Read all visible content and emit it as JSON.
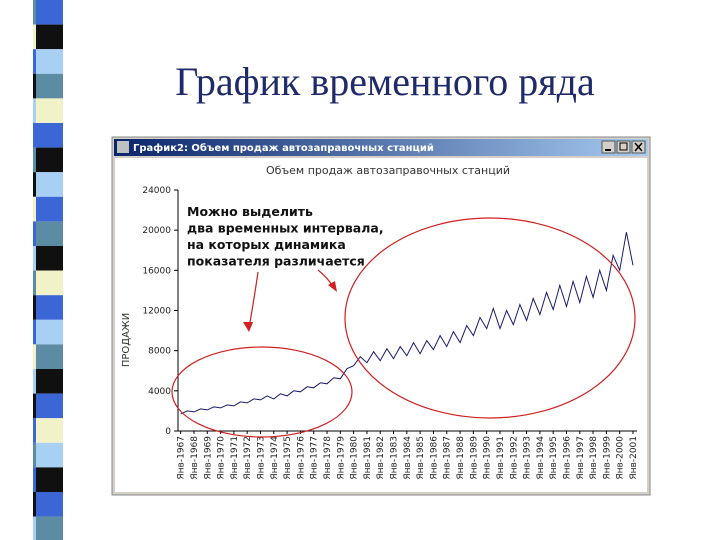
{
  "slide_title": "График временного ряда",
  "window_title": "График2: Объем продаж автозаправочных станций",
  "chart_data": {
    "type": "line",
    "title": "Объем продаж автозаправочных станций",
    "y_label": "ПРОДАЖИ",
    "annotation": [
      "Можно выделить",
      "два временных интервала,",
      "на которых динамика",
      "показателя различается"
    ],
    "color": "#1a1a6e",
    "x": [
      1967,
      1967.5,
      1968,
      1968.5,
      1969,
      1969.5,
      1970,
      1970.5,
      1971,
      1971.5,
      1972,
      1972.5,
      1973,
      1973.5,
      1974,
      1974.5,
      1975,
      1975.5,
      1976,
      1976.5,
      1977,
      1977.5,
      1978,
      1978.5,
      1979,
      1979.5,
      1980,
      1980.5,
      1981,
      1981.5,
      1982,
      1982.5,
      1983,
      1983.5,
      1984,
      1984.5,
      1985,
      1985.5,
      1986,
      1986.5,
      1987,
      1987.5,
      1988,
      1988.5,
      1989,
      1989.5,
      1990,
      1990.5,
      1991,
      1991.5,
      1992,
      1992.5,
      1993,
      1993.5,
      1994,
      1994.5,
      1995,
      1995.5,
      1996,
      1996.5,
      1997,
      1997.5,
      1998,
      1998.5,
      1999,
      1999.5,
      2000,
      2000.5,
      2001
    ],
    "values": [
      1700,
      2000,
      1900,
      2200,
      2100,
      2400,
      2300,
      2600,
      2500,
      2900,
      2800,
      3200,
      3100,
      3500,
      3200,
      3700,
      3500,
      4000,
      3900,
      4400,
      4300,
      4800,
      4700,
      5300,
      5200,
      6200,
      6500,
      7400,
      6800,
      7900,
      7000,
      8200,
      7200,
      8400,
      7500,
      8800,
      7700,
      9000,
      8100,
      9500,
      8400,
      9900,
      8800,
      10500,
      9500,
      11300,
      10200,
      12200,
      10200,
      12000,
      10600,
      12600,
      11000,
      13200,
      11600,
      13800,
      12100,
      14500,
      12400,
      14900,
      12800,
      15400,
      13300,
      16000,
      14000,
      17500,
      16000,
      19800,
      16500
    ],
    "xlim": [
      1966.8,
      2001.3
    ],
    "ylim": [
      0,
      24000
    ],
    "yticks": [
      0,
      4000,
      8000,
      12000,
      16000,
      20000,
      24000
    ],
    "xticks": [
      {
        "value": 1967,
        "label": "Янв-1967"
      },
      {
        "value": 1968,
        "label": "Янв-1968"
      },
      {
        "value": 1969,
        "label": "Янв-1969"
      },
      {
        "value": 1970,
        "label": "Янв-1970"
      },
      {
        "value": 1971,
        "label": "Янв-1971"
      },
      {
        "value": 1972,
        "label": "Янв-1972"
      },
      {
        "value": 1973,
        "label": "Янв-1973"
      },
      {
        "value": 1974,
        "label": "Янв-1974"
      },
      {
        "value": 1975,
        "label": "Янв-1975"
      },
      {
        "value": 1976,
        "label": "Янв-1976"
      },
      {
        "value": 1977,
        "label": "Янв-1977"
      },
      {
        "value": 1978,
        "label": "Янв-1978"
      },
      {
        "value": 1979,
        "label": "Янв-1979"
      },
      {
        "value": 1980,
        "label": "Янв-1980"
      },
      {
        "value": 1981,
        "label": "Янв-1981"
      },
      {
        "value": 1982,
        "label": "Янв-1982"
      },
      {
        "value": 1983,
        "label": "Янв-1983"
      },
      {
        "value": 1984,
        "label": "Янв-1984"
      },
      {
        "value": 1985,
        "label": "Янв-1985"
      },
      {
        "value": 1986,
        "label": "Янв-1986"
      },
      {
        "value": 1987,
        "label": "Янв-1987"
      },
      {
        "value": 1988,
        "label": "Янв-1988"
      },
      {
        "value": 1989,
        "label": "Янв-1989"
      },
      {
        "value": 1990,
        "label": "Янв-1990"
      },
      {
        "value": 1991,
        "label": "Янв-1991"
      },
      {
        "value": 1992,
        "label": "Янв-1992"
      },
      {
        "value": 1993,
        "label": "Янв-1993"
      },
      {
        "value": 1994,
        "label": "Янв-1994"
      },
      {
        "value": 1995,
        "label": "Янв-1995"
      },
      {
        "value": 1996,
        "label": "Янв-1996"
      },
      {
        "value": 1997,
        "label": "Янв-1997"
      },
      {
        "value": 1998,
        "label": "Янв-1998"
      },
      {
        "value": 1999,
        "label": "Янв-1999"
      },
      {
        "value": 2000,
        "label": "Янв-2000"
      },
      {
        "value": 2001,
        "label": "Янв-2001"
      }
    ]
  }
}
